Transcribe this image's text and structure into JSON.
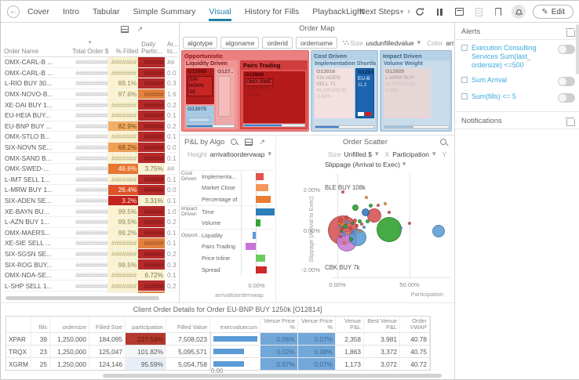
{
  "topbar": {
    "tabs": [
      "Cover",
      "Intro",
      "Tabular",
      "Simple Summary",
      "Visual",
      "History for Fills",
      "Playback",
      "Next Steps"
    ],
    "active_tab": "Visual",
    "overflow_chevron": "›",
    "theme_selector": "Light",
    "edit_button": "Edit"
  },
  "orders_table": {
    "headers": {
      "name": "Order Name",
      "total": "Total Order $",
      "filled": "% Filled",
      "daily_line1": "Daily",
      "daily_line2": "Partic...",
      "arr_line1": "Ar...",
      "arr_line2": "to..."
    },
    "sort_indicator": "▾",
    "rows": [
      {
        "name": "OMX-CARL-B ...",
        "total": "##########",
        "filled": "#######",
        "filled_style": "f-y",
        "daily": "######",
        "daily_style": "d-r",
        "arr": "##"
      },
      {
        "name": "OMX-CARL-B ...",
        "total": "##########",
        "filled": "#######",
        "filled_style": "f-y",
        "daily": "######",
        "daily_style": "d-r",
        "arr": "0.0"
      },
      {
        "name": "L-RIO BUY 30...",
        "total": "##########",
        "filled": "89.1%",
        "filled_style": "f-y",
        "daily": "######",
        "daily_style": "d-r",
        "arr": "0.3"
      },
      {
        "name": "OMX-NOVO-B...",
        "total": "##########",
        "filled": "97.6%",
        "filled_style": "f-y",
        "daily": "######",
        "daily_style": "d-o",
        "arr": "1.6"
      },
      {
        "name": "XE-DAI BUY 1...",
        "total": "##########",
        "filled": "#######",
        "filled_style": "f-y",
        "daily": "######",
        "daily_style": "d-r",
        "arr": "0.2"
      },
      {
        "name": "EU-HEIA BUY...",
        "total": "##########",
        "filled": "#######",
        "filled_style": "f-y",
        "daily": "######",
        "daily_style": "d-r",
        "arr": "0.1"
      },
      {
        "name": "EU-BNP BUY ...",
        "total": "##########",
        "filled": "82.9%",
        "filled_style": "f-o1",
        "daily": "######",
        "daily_style": "d-r",
        "arr": "0.2"
      },
      {
        "name": "OMX-STLO B...",
        "total": "##########",
        "filled": "#######",
        "filled_style": "f-y",
        "daily": "######",
        "daily_style": "d-r",
        "arr": "0.1"
      },
      {
        "name": "SIX-NOVN SE...",
        "total": "##########",
        "filled": "69.2%",
        "filled_style": "f-o2",
        "daily": "######",
        "daily_style": "d-r",
        "arr": "0.0"
      },
      {
        "name": "OMX-SAND B...",
        "total": "##########",
        "filled": "#######",
        "filled_style": "f-y",
        "daily": "######",
        "daily_style": "d-r",
        "arr": "0.1"
      },
      {
        "name": "OMX-SWED-...",
        "total": "##########",
        "filled": "46.6%",
        "filled_style": "f-o3",
        "daily": "3.75%",
        "daily_style": "d-p",
        "arr": "##"
      },
      {
        "name": "L-IMT SELL 1...",
        "total": "##########",
        "filled": "#######",
        "filled_style": "f-y",
        "daily": "######",
        "daily_style": "d-r",
        "arr": "0.1"
      },
      {
        "name": "L-MRW BUY 1...",
        "total": "##########",
        "filled": "26.4%",
        "filled_style": "f-ro",
        "daily": "######",
        "daily_style": "d-r",
        "arr": "0.0"
      },
      {
        "name": "SIX-ADEN SE...",
        "total": "##########",
        "filled": "3.2%",
        "filled_style": "f-dr",
        "daily": "3.31%",
        "daily_style": "d-p",
        "arr": "0.1"
      },
      {
        "name": "XE-BAYN BU...",
        "total": "##########",
        "filled": "99.5%",
        "filled_style": "f-y",
        "daily": "######",
        "daily_style": "d-r",
        "arr": "1.0"
      },
      {
        "name": "L-AZN BUY 1...",
        "total": "##########",
        "filled": "99.5%",
        "filled_style": "f-y",
        "daily": "######",
        "daily_style": "d-r",
        "arr": "0.2"
      },
      {
        "name": "OMX-MAERS...",
        "total": "##########",
        "filled": "99.2%",
        "filled_style": "f-y",
        "daily": "######",
        "daily_style": "d-r",
        "arr": "0.1"
      },
      {
        "name": "XE-SIE SELL ...",
        "total": "##########",
        "filled": "#######",
        "filled_style": "f-y",
        "daily": "######",
        "daily_style": "d-o",
        "arr": "0.1"
      },
      {
        "name": "SIX-SGSN SE...",
        "total": "##########",
        "filled": "#######",
        "filled_style": "f-y",
        "daily": "######",
        "daily_style": "d-r",
        "arr": "0.2"
      },
      {
        "name": "SIX-ROG BUY...",
        "total": "##########",
        "filled": "99.5%",
        "filled_style": "f-y",
        "daily": "######",
        "daily_style": "d-r",
        "arr": "0.3"
      },
      {
        "name": "OMX-NDA-SE...",
        "total": "##########",
        "filled": "#######",
        "filled_style": "f-y",
        "daily": "6.72%",
        "daily_style": "d-p",
        "arr": "0.1"
      },
      {
        "name": "L-SHP SELL 1...",
        "total": "##########",
        "filled": "#######",
        "filled_style": "f-y",
        "daily": "######",
        "daily_style": "d-r",
        "arr": "0.2"
      },
      {
        "name": "SIX-UHR SEL...",
        "total": "##########",
        "filled": "#######",
        "filled_style": "f-y",
        "daily": "######",
        "daily_style": "d-o",
        "arr": "0.1"
      }
    ]
  },
  "order_map": {
    "title": "Order Map",
    "breadcrumbs": [
      "algotype",
      "algoname",
      "orderid",
      "ordername"
    ],
    "size_label": "Size",
    "size_value": "usdunfilledvalue",
    "color_label": "Color",
    "color_value": "arrivaltoo",
    "groups": [
      {
        "label": "Opportunistic",
        "subgroups": [
          {
            "label": "Liquidity Driven",
            "leaves": [
              {
                "id": "O12989",
                "name": "SIX-NOVN SE"
              },
              {
                "id": "O127.."
              },
              {
                "id": "O13075"
              }
            ]
          },
          {
            "label": "Pairs Trading",
            "leaves": [
              {
                "id": "O12846",
                "name": "OMX-SWE",
                "value": "24,800,000",
                "pct": "-0.46%"
              }
            ]
          }
        ]
      },
      {
        "label": "Cost Driven",
        "subgroups": [
          {
            "label": "Implementation Shortfall",
            "leaves": [
              {
                "id": "O13016",
                "name": "SIX-ADEN SELL 71",
                "value": "40,100,000.00",
                "pct": "-0.04%"
              },
              {
                "id": "O12814",
                "name": "EU-B",
                "value": "11,3"
              }
            ]
          }
        ]
      },
      {
        "label": "Impact Driven",
        "subgroups": [
          {
            "label": "Volume Weight",
            "leaves": [
              {
                "id": "O12920",
                "name": "L-MRW BUY",
                "value": "31,500,000.00",
                "pct": "0.05%"
              }
            ]
          }
        ]
      }
    ]
  },
  "pnl_panel": {
    "title": "P&L by Algo",
    "height_label": "Height",
    "height_value": "arrivaltoordervwap"
  },
  "scatter_panel": {
    "title": "Order Scatter",
    "size_label": "Size",
    "size_value": "Unfilled $",
    "x_label": "X",
    "x_value": "Participation",
    "y_label": "Y",
    "y_value": "Slippage (Arrival to Exec)"
  },
  "chart_data": [
    {
      "id": "pnl_by_algo",
      "type": "bar",
      "orientation": "horizontal",
      "title": "P&L by Algo",
      "groups": [
        {
          "label": "Cost Driven",
          "span": 3
        },
        {
          "label": "Impact Driven",
          "span": 2
        },
        {
          "label": "Opport...",
          "span": 4
        }
      ],
      "categories": [
        "Implementa...",
        "Market Close",
        "Percentage of",
        "Time",
        "Volume",
        "Liquidity",
        "Pairs Trading",
        "Price Inline",
        "Spread"
      ],
      "values": [
        0.17,
        0.26,
        0.32,
        0.4,
        0.1,
        -0.06,
        -0.22,
        0.2,
        0.24
      ],
      "unit": "%",
      "colors": [
        "#e0524c",
        "#f5975c",
        "#ea7d32",
        "#2d7dbb",
        "#33a532",
        "#5b9bd5",
        "#c873d6",
        "#6ecb5f",
        "#ce2828"
      ],
      "xlabel": "arrivaltoordervwap",
      "xticks": [
        "0.00%"
      ]
    },
    {
      "id": "order_scatter",
      "type": "scatter",
      "title": "Order Scatter",
      "xlabel": "Participation",
      "ylabel": "Slippage (Arrival to Exec)",
      "xticks": [
        "0.00%",
        "50.00%"
      ],
      "yticks": [
        "2.00%",
        "0.00%",
        "-2.00%"
      ],
      "xlim": [
        -5,
        78
      ],
      "ylim": [
        -2.9,
        2.9
      ],
      "annotations": [
        {
          "text": "BLE BUY 108k",
          "x": 0,
          "y": 2.1
        },
        {
          "text": "CBK BUY 7k",
          "x": 0,
          "y": -1.85
        }
      ],
      "points": [
        [
          4,
          0,
          19,
          "red"
        ],
        [
          6.5,
          -0.52,
          13,
          "purple"
        ],
        [
          14,
          -0.33,
          11,
          "blue"
        ],
        [
          36,
          0.04,
          16,
          "green"
        ],
        [
          25.5,
          0.72,
          9,
          "red"
        ],
        [
          19.5,
          0.9,
          5,
          "dkblue"
        ],
        [
          12.5,
          1.12,
          4,
          "green"
        ],
        [
          70,
          -0.05,
          8,
          "blue"
        ],
        [
          2,
          0.5,
          3,
          "red"
        ],
        [
          3.5,
          0.3,
          2.5,
          "orange"
        ],
        [
          5.5,
          0.18,
          3,
          "green"
        ],
        [
          7,
          0.42,
          2.5,
          "blue"
        ],
        [
          9,
          0.1,
          2.5,
          "red"
        ],
        [
          10.5,
          0.35,
          2,
          "green"
        ],
        [
          12,
          0.5,
          2.5,
          "red"
        ],
        [
          8,
          -0.15,
          2.5,
          "orange"
        ],
        [
          4.5,
          -0.2,
          2.5,
          "blue"
        ],
        [
          2.5,
          -0.05,
          2,
          "green"
        ],
        [
          6,
          0.65,
          2.5,
          "red"
        ],
        [
          1.5,
          0.2,
          2,
          "blue"
        ],
        [
          3,
          0.08,
          2,
          "red"
        ],
        [
          11,
          -0.1,
          2,
          "blue"
        ],
        [
          13.5,
          0.22,
          2,
          "red"
        ],
        [
          15.5,
          0.45,
          2.5,
          "green"
        ],
        [
          17,
          0.3,
          2,
          "red"
        ],
        [
          18.5,
          0.15,
          2,
          "blue"
        ],
        [
          16,
          -0.05,
          2,
          "orange"
        ],
        [
          21,
          0.45,
          2.5,
          "green"
        ],
        [
          23,
          1.2,
          2.5,
          "green"
        ],
        [
          28,
          1.25,
          2,
          "red"
        ],
        [
          33,
          1.3,
          2,
          "orange"
        ],
        [
          4,
          1.9,
          2,
          "red"
        ],
        [
          20,
          1.6,
          2,
          "orange"
        ],
        [
          44,
          0.1,
          2,
          "blue"
        ],
        [
          50,
          0.35,
          2,
          "red"
        ],
        [
          9.5,
          -0.45,
          2.5,
          "green"
        ],
        [
          5,
          -0.6,
          2,
          "orange"
        ],
        [
          36,
          0.9,
          2,
          "red"
        ],
        [
          1,
          0.35,
          2,
          "orange"
        ],
        [
          2,
          -0.3,
          2,
          "red"
        ]
      ]
    },
    {
      "id": "venue_execvaluecum",
      "type": "bar",
      "categories": [
        "XPAR",
        "TRQX",
        "XGRM"
      ],
      "values": [
        7508023,
        5095571,
        5054758
      ],
      "xticks": [
        "0.00"
      ]
    }
  ],
  "client_details": {
    "title": "Client Order Details for Order EU-BNP BUY 1250k [O12814]",
    "columns": [
      "",
      "fills",
      "ordersize",
      "Filled Size",
      "participation",
      "Filled Value",
      "execvaluecum",
      "Diff to Venue Price %",
      "Diff to Best Venue Price %",
      "Venue P&L",
      "Best Venue P&L",
      "Order VWAP"
    ],
    "rows": [
      {
        "venue": "XPAR",
        "fills": "39",
        "ordersize": "1,250,000",
        "filled_size": "184,095",
        "participation": "227.58%",
        "participation_style": "p-red",
        "filled_value": "7,508,023",
        "diff_venue": "0.06%",
        "diff_best": "0.07%",
        "venue_pnl": "2,358",
        "best_venue_pnl": "3,981",
        "order_vwap": "40.78"
      },
      {
        "venue": "TRQX",
        "fills": "23",
        "ordersize": "1,250,000",
        "filled_size": "125,047",
        "participation": "101.82%",
        "participation_style": "p-plain",
        "filled_value": "5,095,571",
        "diff_venue": "0.02%",
        "diff_best": "0.08%",
        "venue_pnl": "1,863",
        "best_venue_pnl": "3,372",
        "order_vwap": "40.75"
      },
      {
        "venue": "XGRM",
        "fills": "25",
        "ordersize": "1,250,000",
        "filled_size": "124,146",
        "participation": "95.59%",
        "participation_style": "p-pale",
        "filled_value": "5,054,758",
        "diff_venue": "0.07%",
        "diff_best": "0.07%",
        "venue_pnl": "1,173",
        "best_venue_pnl": "3,072",
        "order_vwap": "40.72"
      }
    ],
    "axis_tick": "0.00"
  },
  "alerts": {
    "title": "Alerts",
    "items": [
      {
        "label": "Execution Consulting Services Sum(last_ ordersize) <=500",
        "enabled": false
      },
      {
        "label": "Sum Arrival",
        "enabled": false
      },
      {
        "label": "Sum(fills) <= 5",
        "enabled": false
      }
    ],
    "notifications_title": "Notifications"
  },
  "colors": {
    "accent_blue": "#1d7fa6",
    "alert_blue": "#3aa9dc",
    "treemap_red": "#ec8080",
    "treemap_blue": "#b5d1e7",
    "bar_blue": "#5b9bd5",
    "participation_red": "#b23a2e",
    "diff_cell_blue": "#72a7d9"
  }
}
